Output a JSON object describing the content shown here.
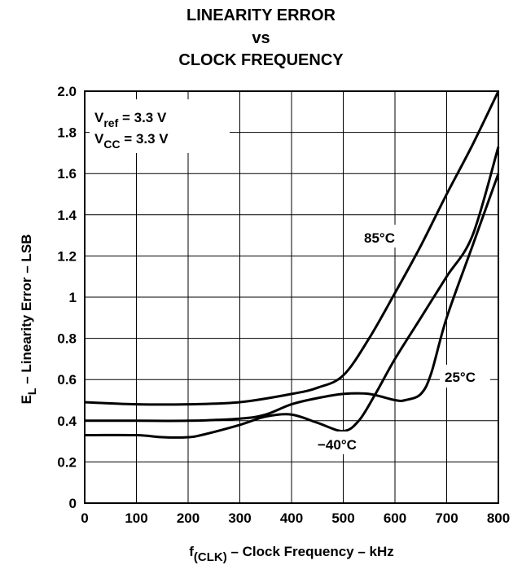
{
  "chart_data": {
    "type": "line",
    "title_lines": [
      "LINEARITY ERROR",
      "vs",
      "CLOCK FREQUENCY"
    ],
    "xlabel": {
      "main": "f",
      "sub": "(CLK)",
      "rest": " – Clock Frequency – kHz"
    },
    "ylabel": {
      "main": "E",
      "sub": "L",
      "rest": " – Linearity Error – LSB"
    },
    "xlim": [
      0,
      800
    ],
    "ylim": [
      0,
      2.0
    ],
    "xticks": [
      0,
      100,
      200,
      300,
      400,
      500,
      600,
      700,
      800
    ],
    "xtick_labels": [
      "0",
      "100",
      "200",
      "300",
      "400",
      "500",
      "600",
      "700",
      "800"
    ],
    "yticks": [
      0,
      0.2,
      0.4,
      0.6,
      0.8,
      1.0,
      1.2,
      1.4,
      1.6,
      1.8,
      2.0
    ],
    "ytick_labels": [
      "0",
      "0.2",
      "0.4",
      "0.6",
      "0.8",
      "1",
      "1.2",
      "1.4",
      "1.6",
      "1.8",
      "2.0"
    ],
    "grid": true,
    "conditions": [
      {
        "main": "V",
        "sub": "ref",
        "rest": " = 3.3 V"
      },
      {
        "main": "V",
        "sub": "CC",
        "rest": " = 3.3 V"
      }
    ],
    "series": [
      {
        "name": "85°C",
        "x": [
          0,
          100,
          200,
          300,
          400,
          450,
          500,
          550,
          600,
          650,
          700,
          750,
          800
        ],
        "y": [
          0.49,
          0.48,
          0.48,
          0.49,
          0.53,
          0.56,
          0.62,
          0.8,
          1.02,
          1.25,
          1.5,
          1.74,
          2.0
        ]
      },
      {
        "name": "25°C",
        "x": [
          0,
          100,
          200,
          300,
          350,
          400,
          450,
          500,
          550,
          600,
          620,
          650,
          670,
          700,
          750,
          800
        ],
        "y": [
          0.4,
          0.4,
          0.4,
          0.41,
          0.43,
          0.48,
          0.51,
          0.53,
          0.53,
          0.5,
          0.5,
          0.53,
          0.63,
          0.9,
          1.25,
          1.6
        ]
      },
      {
        "name": "−40°C",
        "x": [
          0,
          100,
          150,
          200,
          225,
          300,
          350,
          400,
          450,
          500,
          530,
          560,
          600,
          650,
          700,
          750,
          800
        ],
        "y": [
          0.33,
          0.33,
          0.32,
          0.32,
          0.33,
          0.38,
          0.42,
          0.43,
          0.39,
          0.35,
          0.4,
          0.52,
          0.7,
          0.9,
          1.1,
          1.3,
          1.73
        ]
      }
    ]
  }
}
